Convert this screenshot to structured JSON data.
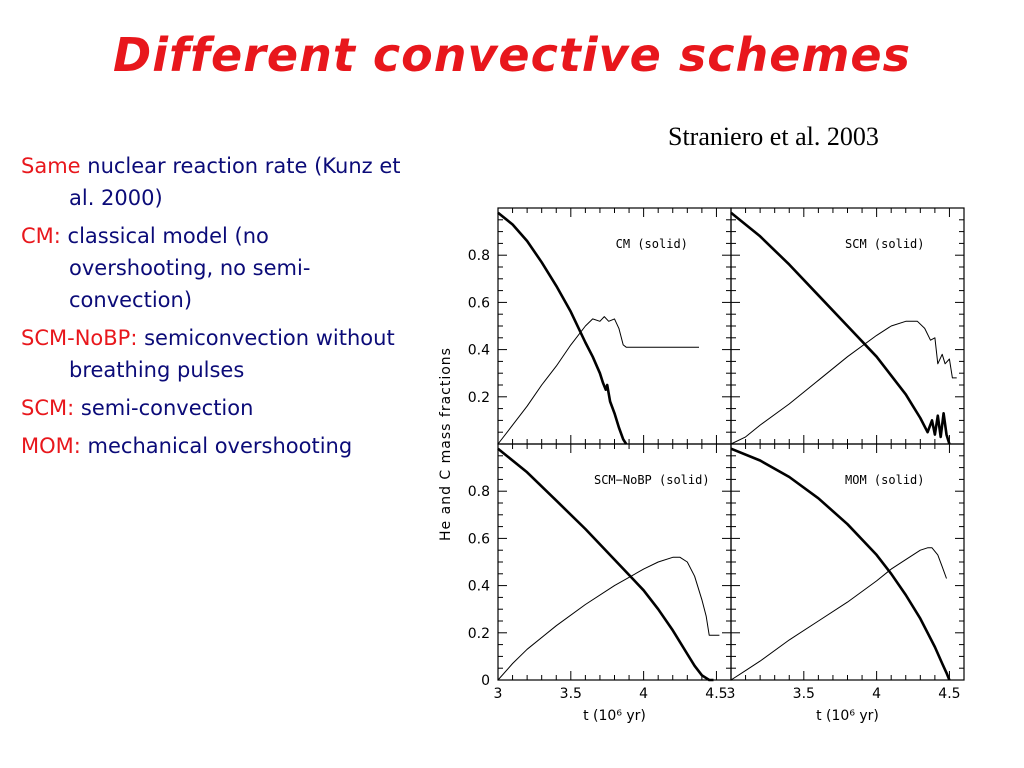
{
  "title": "Different convective schemes",
  "citation": "Straniero et al. 2003",
  "bullets": [
    {
      "lead": "Same",
      "desc": "nuclear reaction rate (Kunz et al. 2000)"
    },
    {
      "lead": "CM:",
      "desc": "classical model (no overshooting, no semi-convection)"
    },
    {
      "lead": "SCM-NoBP:",
      "desc": "semiconvection without breathing pulses"
    },
    {
      "lead": "SCM:",
      "desc": "semi-convection"
    },
    {
      "lead": "MOM:",
      "desc": "mechanical overshooting"
    }
  ],
  "colors": {
    "title": "#e8171c",
    "lead": "#e8171c",
    "desc": "#0b0b78",
    "ink": "#000000"
  },
  "chart_data": {
    "type": "line",
    "ylabel": "He and C mass fractions",
    "xlabel": "t (10⁶ yr)",
    "xlim": [
      3,
      4.6
    ],
    "ylim": [
      0,
      1
    ],
    "xticks": [
      "3",
      "3.5",
      "4",
      "4.5"
    ],
    "yticks_top": [
      "0.2",
      "0.4",
      "0.6",
      "0.8"
    ],
    "yticks_bottom": [
      "0",
      "0.2",
      "0.4",
      "0.6",
      "0.8"
    ],
    "panels": [
      {
        "label": "CM (solid)",
        "solid": [
          [
            3.0,
            0.98
          ],
          [
            3.1,
            0.93
          ],
          [
            3.2,
            0.86
          ],
          [
            3.3,
            0.77
          ],
          [
            3.4,
            0.67
          ],
          [
            3.5,
            0.56
          ],
          [
            3.6,
            0.43
          ],
          [
            3.65,
            0.37
          ],
          [
            3.7,
            0.3
          ],
          [
            3.72,
            0.26
          ],
          [
            3.74,
            0.23
          ],
          [
            3.75,
            0.25
          ],
          [
            3.77,
            0.18
          ],
          [
            3.8,
            0.13
          ],
          [
            3.83,
            0.07
          ],
          [
            3.86,
            0.02
          ],
          [
            3.88,
            0.0
          ]
        ],
        "thin": [
          [
            3.0,
            0.0
          ],
          [
            3.1,
            0.08
          ],
          [
            3.2,
            0.16
          ],
          [
            3.3,
            0.25
          ],
          [
            3.4,
            0.33
          ],
          [
            3.5,
            0.42
          ],
          [
            3.6,
            0.5
          ],
          [
            3.65,
            0.53
          ],
          [
            3.7,
            0.52
          ],
          [
            3.73,
            0.54
          ],
          [
            3.76,
            0.52
          ],
          [
            3.8,
            0.53
          ],
          [
            3.83,
            0.49
          ],
          [
            3.86,
            0.42
          ],
          [
            3.88,
            0.41
          ],
          [
            4.0,
            0.41
          ],
          [
            4.1,
            0.41
          ],
          [
            4.2,
            0.41
          ],
          [
            4.3,
            0.41
          ],
          [
            4.38,
            0.41
          ]
        ]
      },
      {
        "label": "SCM (solid)",
        "solid": [
          [
            3.0,
            0.98
          ],
          [
            3.2,
            0.88
          ],
          [
            3.4,
            0.76
          ],
          [
            3.6,
            0.63
          ],
          [
            3.8,
            0.5
          ],
          [
            4.0,
            0.37
          ],
          [
            4.1,
            0.29
          ],
          [
            4.2,
            0.21
          ],
          [
            4.25,
            0.16
          ],
          [
            4.3,
            0.11
          ],
          [
            4.35,
            0.05
          ],
          [
            4.38,
            0.1
          ],
          [
            4.4,
            0.04
          ],
          [
            4.42,
            0.12
          ],
          [
            4.44,
            0.03
          ],
          [
            4.46,
            0.13
          ],
          [
            4.48,
            0.04
          ],
          [
            4.5,
            0.0
          ]
        ],
        "thin": [
          [
            3.0,
            0.0
          ],
          [
            3.1,
            0.03
          ],
          [
            3.2,
            0.08
          ],
          [
            3.4,
            0.17
          ],
          [
            3.6,
            0.27
          ],
          [
            3.8,
            0.37
          ],
          [
            4.0,
            0.46
          ],
          [
            4.1,
            0.5
          ],
          [
            4.2,
            0.52
          ],
          [
            4.28,
            0.52
          ],
          [
            4.33,
            0.49
          ],
          [
            4.37,
            0.44
          ],
          [
            4.4,
            0.45
          ],
          [
            4.42,
            0.34
          ],
          [
            4.45,
            0.38
          ],
          [
            4.47,
            0.34
          ],
          [
            4.5,
            0.36
          ],
          [
            4.52,
            0.28
          ],
          [
            4.55,
            0.28
          ]
        ]
      },
      {
        "label": "SCM−NoBP (solid)",
        "solid": [
          [
            3.0,
            0.98
          ],
          [
            3.2,
            0.88
          ],
          [
            3.4,
            0.76
          ],
          [
            3.6,
            0.64
          ],
          [
            3.8,
            0.51
          ],
          [
            4.0,
            0.38
          ],
          [
            4.1,
            0.3
          ],
          [
            4.2,
            0.21
          ],
          [
            4.3,
            0.11
          ],
          [
            4.35,
            0.06
          ],
          [
            4.4,
            0.02
          ],
          [
            4.45,
            0.0
          ],
          [
            4.48,
            0.0
          ]
        ],
        "thin": [
          [
            3.0,
            0.0
          ],
          [
            3.1,
            0.07
          ],
          [
            3.2,
            0.13
          ],
          [
            3.4,
            0.23
          ],
          [
            3.6,
            0.32
          ],
          [
            3.8,
            0.4
          ],
          [
            4.0,
            0.47
          ],
          [
            4.1,
            0.5
          ],
          [
            4.2,
            0.52
          ],
          [
            4.25,
            0.52
          ],
          [
            4.3,
            0.5
          ],
          [
            4.35,
            0.44
          ],
          [
            4.4,
            0.34
          ],
          [
            4.43,
            0.27
          ],
          [
            4.45,
            0.19
          ],
          [
            4.48,
            0.19
          ],
          [
            4.52,
            0.19
          ]
        ]
      },
      {
        "label": "MOM (solid)",
        "solid": [
          [
            3.0,
            0.98
          ],
          [
            3.2,
            0.93
          ],
          [
            3.4,
            0.86
          ],
          [
            3.6,
            0.77
          ],
          [
            3.8,
            0.66
          ],
          [
            4.0,
            0.53
          ],
          [
            4.1,
            0.45
          ],
          [
            4.2,
            0.36
          ],
          [
            4.3,
            0.26
          ],
          [
            4.4,
            0.14
          ],
          [
            4.45,
            0.07
          ],
          [
            4.48,
            0.03
          ],
          [
            4.5,
            0.0
          ]
        ],
        "thin": [
          [
            3.0,
            0.0
          ],
          [
            3.1,
            0.04
          ],
          [
            3.2,
            0.08
          ],
          [
            3.4,
            0.17
          ],
          [
            3.6,
            0.25
          ],
          [
            3.8,
            0.33
          ],
          [
            4.0,
            0.42
          ],
          [
            4.1,
            0.47
          ],
          [
            4.2,
            0.51
          ],
          [
            4.3,
            0.55
          ],
          [
            4.35,
            0.56
          ],
          [
            4.38,
            0.56
          ],
          [
            4.42,
            0.53
          ],
          [
            4.45,
            0.48
          ],
          [
            4.48,
            0.43
          ]
        ]
      }
    ]
  }
}
